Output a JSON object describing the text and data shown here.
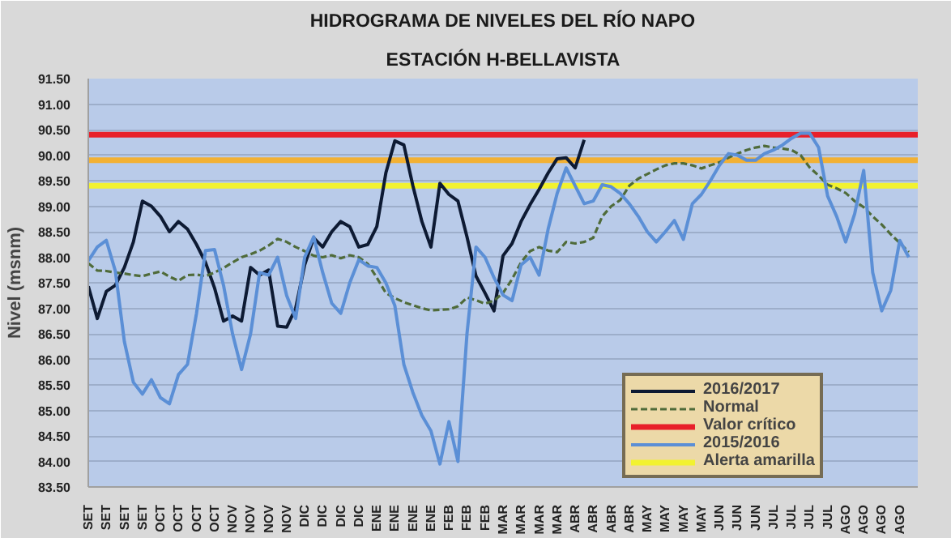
{
  "chart_data": {
    "type": "line",
    "title": "HIDROGRAMA DE NIVELES DEL RÍO NAPO",
    "subtitle": "ESTACIÓN H-BELLAVISTA",
    "ylabel": "Nivel (msnm)",
    "ylim": [
      83.5,
      91.5
    ],
    "yticks": [
      {
        "value": 83.5,
        "label": "83.50"
      },
      {
        "value": 84,
        "label": "84.00"
      },
      {
        "value": 84.5,
        "label": "84.50"
      },
      {
        "value": 85,
        "label": "85.00"
      },
      {
        "value": 85.5,
        "label": "85.50"
      },
      {
        "value": 86,
        "label": "86.00"
      },
      {
        "value": 86.5,
        "label": "86.50"
      },
      {
        "value": 87,
        "label": "87.00"
      },
      {
        "value": 87.5,
        "label": "87.50"
      },
      {
        "value": 88,
        "label": "88.00"
      },
      {
        "value": 88.5,
        "label": "88.50"
      },
      {
        "value": 89,
        "label": "89.00"
      },
      {
        "value": 89.5,
        "label": "89.50"
      },
      {
        "value": 90,
        "label": "90.00"
      },
      {
        "value": 90.5,
        "label": "90.50"
      },
      {
        "value": 91,
        "label": "91.00"
      },
      {
        "value": 91.5,
        "label": "91.50"
      }
    ],
    "categories": [
      "SET",
      null,
      "SET",
      null,
      "SET",
      null,
      "SET",
      null,
      "OCT",
      null,
      "OCT",
      null,
      "OCT",
      null,
      "OCT",
      null,
      "NOV",
      null,
      "NOV",
      null,
      "NOV",
      null,
      "NOV",
      null,
      "DIC",
      null,
      "DIC",
      null,
      "DIC",
      null,
      "DIC",
      null,
      "ENE",
      null,
      "ENE",
      null,
      "ENE",
      null,
      "ENE",
      null,
      "FEB",
      null,
      "FEB",
      null,
      "FEB",
      null,
      "MAR",
      null,
      "MAR",
      null,
      "MAR",
      null,
      "MAR",
      null,
      "ABR",
      null,
      "ABR",
      null,
      "ABR",
      null,
      "ABR",
      null,
      "MAY",
      null,
      "MAY",
      null,
      "MAY",
      null,
      "MAY",
      null,
      "JUN",
      null,
      "JUN",
      null,
      "JUN",
      null,
      "JUL",
      null,
      "JUL",
      null,
      "JUL",
      null,
      "JUL",
      null,
      "AGO",
      null,
      "AGO",
      null,
      "AGO",
      null,
      "AGO",
      null
    ],
    "grid": "y",
    "legend": "bottom right",
    "series": [
      {
        "name": "2016/2017",
        "color": "#0d1a33",
        "line_style": "solid",
        "values": [
          87.43,
          86.8,
          87.33,
          87.45,
          87.8,
          88.3,
          89.1,
          89.0,
          88.8,
          88.5,
          88.7,
          88.55,
          88.25,
          87.9,
          87.4,
          86.75,
          86.85,
          86.75,
          87.8,
          87.65,
          87.75,
          86.65,
          86.63,
          87.0,
          87.85,
          88.38,
          88.2,
          88.5,
          88.7,
          88.6,
          88.2,
          88.25,
          88.6,
          89.65,
          90.28,
          90.2,
          89.4,
          88.7,
          88.2,
          89.45,
          89.23,
          89.1,
          88.4,
          87.63,
          87.3,
          86.95,
          88.03,
          88.27,
          88.7,
          89.03,
          89.33,
          89.65,
          89.93,
          89.95,
          89.75,
          90.3,
          null,
          null,
          null,
          null,
          null,
          null,
          null,
          null,
          null,
          null,
          null,
          null,
          null,
          null,
          null,
          null,
          null,
          null,
          null,
          null,
          null,
          null,
          null,
          null,
          null,
          null,
          null,
          null,
          null,
          null,
          null,
          null,
          null,
          null,
          null,
          null
        ]
      },
      {
        "name": "Normal",
        "color": "#4f6b3a",
        "line_style": "dashed",
        "values": [
          87.88,
          87.74,
          87.73,
          87.7,
          87.68,
          87.65,
          87.63,
          87.68,
          87.72,
          87.62,
          87.54,
          87.65,
          87.66,
          87.63,
          87.7,
          87.79,
          87.9,
          88.0,
          88.06,
          88.13,
          88.23,
          88.36,
          88.3,
          88.2,
          88.12,
          88.03,
          88.0,
          88.04,
          87.98,
          88.04,
          88.0,
          87.87,
          87.6,
          87.3,
          87.2,
          87.12,
          87.06,
          87.0,
          86.96,
          86.97,
          86.98,
          87.04,
          87.21,
          87.16,
          87.09,
          87.15,
          87.3,
          87.57,
          87.9,
          88.12,
          88.2,
          88.13,
          88.1,
          88.3,
          88.27,
          88.3,
          88.38,
          88.8,
          89.0,
          89.12,
          89.4,
          89.54,
          89.63,
          89.72,
          89.8,
          89.84,
          89.84,
          89.8,
          89.74,
          89.8,
          89.86,
          89.95,
          90.03,
          90.1,
          90.15,
          90.18,
          90.15,
          90.13,
          90.1,
          90.0,
          89.76,
          89.6,
          89.42,
          89.35,
          89.26,
          89.1,
          88.98,
          88.8,
          88.64,
          88.45,
          88.28,
          88.1
        ]
      },
      {
        "name": "2015/2016",
        "color": "#5b8fd6",
        "line_style": "solid",
        "values": [
          87.93,
          88.2,
          88.33,
          87.73,
          86.35,
          85.55,
          85.32,
          85.6,
          85.25,
          85.13,
          85.7,
          85.9,
          86.9,
          88.13,
          88.15,
          87.45,
          86.5,
          85.8,
          86.5,
          87.7,
          87.65,
          88.0,
          87.25,
          86.8,
          88.0,
          88.4,
          87.7,
          87.1,
          86.9,
          87.5,
          87.95,
          87.83,
          87.8,
          87.5,
          87.05,
          85.9,
          85.35,
          84.9,
          84.6,
          83.95,
          84.78,
          84.0,
          86.5,
          88.2,
          88.0,
          87.6,
          87.26,
          87.15,
          87.85,
          88.0,
          87.65,
          88.55,
          89.25,
          89.75,
          89.4,
          89.05,
          89.1,
          89.42,
          89.38,
          89.25,
          89.05,
          88.8,
          88.5,
          88.3,
          88.5,
          88.72,
          88.35,
          89.05,
          89.23,
          89.5,
          89.8,
          90.03,
          90.0,
          89.9,
          89.9,
          90.03,
          90.1,
          90.2,
          90.33,
          90.43,
          90.43,
          90.15,
          89.2,
          88.8,
          88.3,
          88.85,
          89.7,
          87.7,
          86.95,
          87.35,
          88.33,
          88.0
        ]
      }
    ],
    "ref_lines": [
      {
        "axis": "y",
        "value": 90.4,
        "label": "Valor crítico",
        "color": "#e8202a"
      },
      {
        "axis": "y",
        "value": 89.9,
        "label": null,
        "color": "#f2b134"
      },
      {
        "axis": "y",
        "value": 89.4,
        "label": "Alerta amarilla",
        "color": "#f2f230"
      }
    ]
  }
}
